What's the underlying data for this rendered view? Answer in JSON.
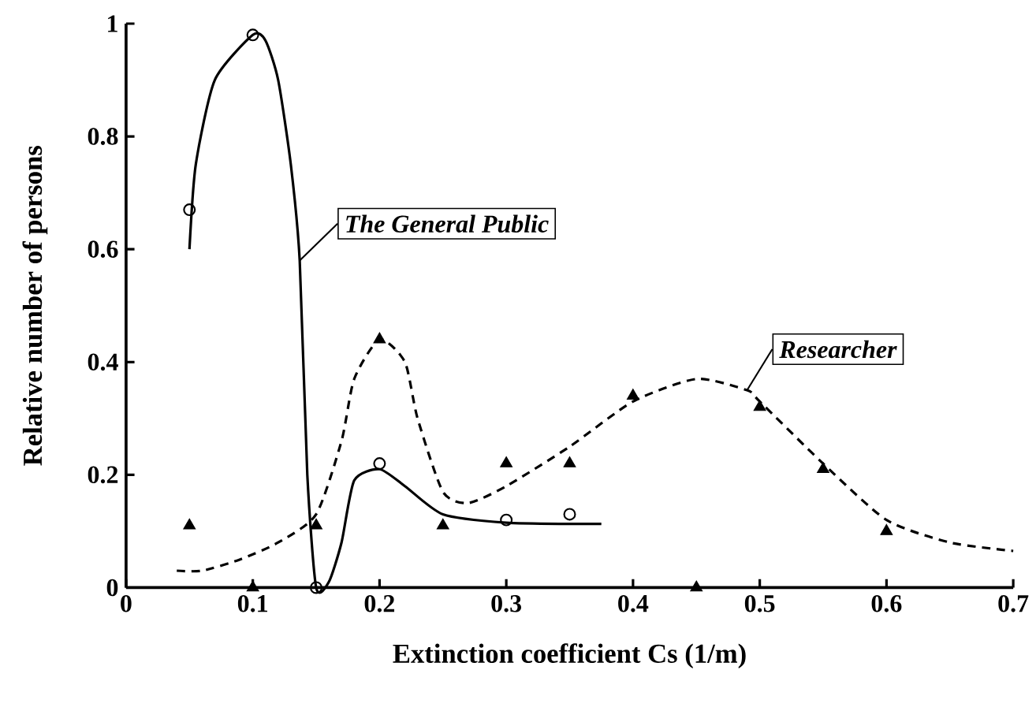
{
  "chart_data": {
    "type": "scatter",
    "xlabel": "Extinction coefficient  Cs  (1/m)",
    "ylabel": "Relative number of persons",
    "xlim": [
      0,
      0.7
    ],
    "ylim": [
      0,
      1
    ],
    "xticks": [
      0,
      0.1,
      0.2,
      0.3,
      0.4,
      0.5,
      0.6,
      0.7
    ],
    "yticks": [
      0,
      0.2,
      0.4,
      0.6,
      0.8,
      1
    ],
    "series": [
      {
        "marker": "circle",
        "color": "#000000",
        "x": [
          0.05,
          0.1,
          0.15,
          0.2,
          0.3,
          0.35
        ],
        "values": [
          0.67,
          0.98,
          0.0,
          0.22,
          0.12,
          0.13
        ]
      },
      {
        "type": "line",
        "name": "The General Public",
        "line_style": "solid",
        "marker": "none",
        "color": "#000000",
        "x": [
          0.05,
          0.055,
          0.07,
          0.1,
          0.11,
          0.12,
          0.13,
          0.137,
          0.143,
          0.15,
          0.16,
          0.17,
          0.18,
          0.2,
          0.22,
          0.25,
          0.3,
          0.35,
          0.375
        ],
        "values": [
          0.6,
          0.75,
          0.9,
          0.98,
          0.97,
          0.9,
          0.75,
          0.58,
          0.2,
          0.0,
          0.01,
          0.08,
          0.19,
          0.21,
          0.18,
          0.13,
          0.115,
          0.113,
          0.113
        ]
      },
      {
        "marker": "triangle",
        "color": "#000000",
        "x": [
          0.05,
          0.1,
          0.15,
          0.2,
          0.25,
          0.3,
          0.35,
          0.4,
          0.45,
          0.5,
          0.55,
          0.6
        ],
        "values": [
          0.11,
          0.0,
          0.11,
          0.44,
          0.11,
          0.22,
          0.22,
          0.34,
          0.0,
          0.32,
          0.21,
          0.1
        ]
      },
      {
        "type": "line",
        "name": "Researcher",
        "line_style": "dashed",
        "marker": "none",
        "color": "#000000",
        "x": [
          0.04,
          0.06,
          0.09,
          0.12,
          0.15,
          0.17,
          0.18,
          0.2,
          0.22,
          0.23,
          0.25,
          0.27,
          0.3,
          0.35,
          0.4,
          0.45,
          0.49,
          0.5,
          0.55,
          0.6,
          0.65,
          0.7
        ],
        "values": [
          0.03,
          0.03,
          0.05,
          0.08,
          0.13,
          0.26,
          0.37,
          0.44,
          0.4,
          0.3,
          0.17,
          0.15,
          0.18,
          0.25,
          0.33,
          0.37,
          0.35,
          0.33,
          0.22,
          0.12,
          0.08,
          0.065
        ]
      }
    ]
  }
}
